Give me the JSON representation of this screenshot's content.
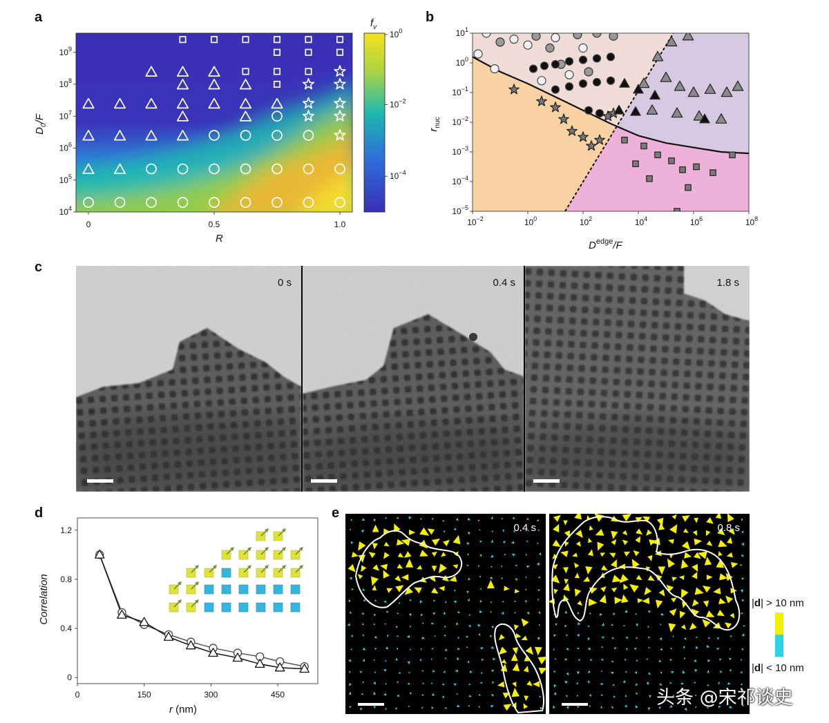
{
  "panels": {
    "a": "a",
    "b": "b",
    "c": "c",
    "d": "d",
    "e": "e"
  },
  "panel_a": {
    "xlabel": "R",
    "ylabel_main": "D",
    "ylabel_sub": "0",
    "ylabel_tail": "/F",
    "colorbar_label_main": "f",
    "colorbar_label_sub": "v",
    "x_ticks": [
      "0",
      "0.5",
      "1.0"
    ],
    "y_ticks": [
      {
        "base": "10",
        "exp": "4"
      },
      {
        "base": "10",
        "exp": "5"
      },
      {
        "base": "10",
        "exp": "6"
      },
      {
        "base": "10",
        "exp": "7"
      },
      {
        "base": "10",
        "exp": "8"
      },
      {
        "base": "10",
        "exp": "9"
      }
    ],
    "cbar_ticks": [
      {
        "base": "10",
        "exp": "0"
      },
      {
        "base": "10",
        "exp": "−2"
      },
      {
        "base": "10",
        "exp": "−4"
      }
    ],
    "colors": {
      "low": "#3a2fb5",
      "mid": "#1fb8b0",
      "high": "#f7e11c"
    }
  },
  "panel_b": {
    "xlabel_main": "D",
    "xlabel_sup": "edge",
    "xlabel_tail": "/F",
    "ylabel_main": "r",
    "ylabel_sub": "nuc",
    "x_ticks": [
      {
        "base": "10",
        "exp": "−2"
      },
      {
        "base": "10",
        "exp": "0"
      },
      {
        "base": "10",
        "exp": "2"
      },
      {
        "base": "10",
        "exp": "4"
      },
      {
        "base": "10",
        "exp": "6"
      },
      {
        "base": "10",
        "exp": "8"
      }
    ],
    "y_ticks": [
      {
        "base": "10",
        "exp": "1"
      },
      {
        "base": "10",
        "exp": "0"
      },
      {
        "base": "10",
        "exp": "−1"
      },
      {
        "base": "10",
        "exp": "−2"
      },
      {
        "base": "10",
        "exp": "−3"
      },
      {
        "base": "10",
        "exp": "−4"
      },
      {
        "base": "10",
        "exp": "−5"
      }
    ],
    "colors": {
      "orange": "#f8d2a2",
      "beige": "#efdcd6",
      "lavender": "#d7c9e1",
      "pink": "#eeb1da"
    }
  },
  "panel_c": {
    "times": [
      "0 s",
      "0.4 s",
      "1.8 s"
    ]
  },
  "panel_d": {
    "xlabel_main": "r",
    "xlabel_tail": " (nm)",
    "ylabel": "Correlation"
  },
  "panel_e": {
    "times": [
      "0.4 s",
      "0.8 s"
    ],
    "legend_high": "> 10 nm",
    "legend_low": "< 10 nm",
    "legend_sym": "d",
    "colors": {
      "yellow": "#f5f000",
      "cyan": "#2ad4e6"
    }
  },
  "watermark": "头条 @宋祁谈史",
  "chart_data": [
    {
      "type": "heatmap",
      "id": "a",
      "xlabel": "R",
      "ylabel": "D0/F",
      "xlim": [
        0,
        1
      ],
      "ylim_log10": [
        4,
        9.6
      ],
      "colorbar": "fv",
      "colorbar_range_log10": [
        -5,
        0
      ],
      "markers": [
        {
          "R": 0,
          "logD": 4.3,
          "shape": "circle"
        },
        {
          "R": 0.125,
          "logD": 4.3,
          "shape": "circle"
        },
        {
          "R": 0.25,
          "logD": 4.3,
          "shape": "circle"
        },
        {
          "R": 0.375,
          "logD": 4.3,
          "shape": "circle"
        },
        {
          "R": 0.5,
          "logD": 4.3,
          "shape": "circle"
        },
        {
          "R": 0.625,
          "logD": 4.3,
          "shape": "circle"
        },
        {
          "R": 0.75,
          "logD": 4.3,
          "shape": "circle"
        },
        {
          "R": 0.875,
          "logD": 4.3,
          "shape": "circle"
        },
        {
          "R": 1.0,
          "logD": 4.3,
          "shape": "circle"
        },
        {
          "R": 0,
          "logD": 5.35,
          "shape": "triangle"
        },
        {
          "R": 0.125,
          "logD": 5.35,
          "shape": "triangle"
        },
        {
          "R": 0.25,
          "logD": 5.35,
          "shape": "circle"
        },
        {
          "R": 0.375,
          "logD": 5.35,
          "shape": "circle"
        },
        {
          "R": 0.5,
          "logD": 5.35,
          "shape": "circle"
        },
        {
          "R": 0.625,
          "logD": 5.35,
          "shape": "circle"
        },
        {
          "R": 0.75,
          "logD": 5.35,
          "shape": "circle"
        },
        {
          "R": 0.875,
          "logD": 5.35,
          "shape": "circle"
        },
        {
          "R": 1.0,
          "logD": 5.35,
          "shape": "circle"
        },
        {
          "R": 0,
          "logD": 6.4,
          "shape": "triangle"
        },
        {
          "R": 0.125,
          "logD": 6.4,
          "shape": "triangle"
        },
        {
          "R": 0.25,
          "logD": 6.4,
          "shape": "triangle"
        },
        {
          "R": 0.375,
          "logD": 6.4,
          "shape": "triangle"
        },
        {
          "R": 0.5,
          "logD": 6.4,
          "shape": "circle"
        },
        {
          "R": 0.625,
          "logD": 6.4,
          "shape": "circle"
        },
        {
          "R": 0.75,
          "logD": 6.4,
          "shape": "circle"
        },
        {
          "R": 0.875,
          "logD": 6.4,
          "shape": "circle"
        },
        {
          "R": 1.0,
          "logD": 6.4,
          "shape": "star"
        },
        {
          "R": 0.375,
          "logD": 7.0,
          "shape": "triangle"
        },
        {
          "R": 0.625,
          "logD": 7.0,
          "shape": "triangle"
        },
        {
          "R": 0.75,
          "logD": 7.0,
          "shape": "circle"
        },
        {
          "R": 0.875,
          "logD": 7.0,
          "shape": "star"
        },
        {
          "R": 1.0,
          "logD": 7.0,
          "shape": "star"
        },
        {
          "R": 0,
          "logD": 7.4,
          "shape": "triangle"
        },
        {
          "R": 0.125,
          "logD": 7.4,
          "shape": "triangle"
        },
        {
          "R": 0.25,
          "logD": 7.4,
          "shape": "triangle"
        },
        {
          "R": 0.375,
          "logD": 7.4,
          "shape": "triangle"
        },
        {
          "R": 0.5,
          "logD": 7.4,
          "shape": "triangle"
        },
        {
          "R": 0.625,
          "logD": 7.4,
          "shape": "triangle"
        },
        {
          "R": 0.75,
          "logD": 7.4,
          "shape": "triangle"
        },
        {
          "R": 0.875,
          "logD": 7.4,
          "shape": "star"
        },
        {
          "R": 1.0,
          "logD": 7.4,
          "shape": "star"
        },
        {
          "R": 0.375,
          "logD": 8.0,
          "shape": "triangle"
        },
        {
          "R": 0.5,
          "logD": 8.0,
          "shape": "triangle"
        },
        {
          "R": 0.625,
          "logD": 8.0,
          "shape": "triangle"
        },
        {
          "R": 0.75,
          "logD": 8.0,
          "shape": "square"
        },
        {
          "R": 0.875,
          "logD": 8.0,
          "shape": "star"
        },
        {
          "R": 1.0,
          "logD": 8.0,
          "shape": "star"
        },
        {
          "R": 0.25,
          "logD": 8.4,
          "shape": "triangle"
        },
        {
          "R": 0.375,
          "logD": 8.4,
          "shape": "triangle"
        },
        {
          "R": 0.5,
          "logD": 8.4,
          "shape": "triangle"
        },
        {
          "R": 0.625,
          "logD": 8.4,
          "shape": "square"
        },
        {
          "R": 0.75,
          "logD": 8.4,
          "shape": "square"
        },
        {
          "R": 0.875,
          "logD": 8.4,
          "shape": "square"
        },
        {
          "R": 1.0,
          "logD": 8.4,
          "shape": "star"
        },
        {
          "R": 0.75,
          "logD": 9.0,
          "shape": "square"
        },
        {
          "R": 0.875,
          "logD": 9.0,
          "shape": "square"
        },
        {
          "R": 1.0,
          "logD": 9.0,
          "shape": "square"
        },
        {
          "R": 0.375,
          "logD": 9.4,
          "shape": "square"
        },
        {
          "R": 0.5,
          "logD": 9.4,
          "shape": "square"
        },
        {
          "R": 0.625,
          "logD": 9.4,
          "shape": "square"
        },
        {
          "R": 0.75,
          "logD": 9.4,
          "shape": "square"
        },
        {
          "R": 0.875,
          "logD": 9.4,
          "shape": "square"
        },
        {
          "R": 1.0,
          "logD": 9.4,
          "shape": "square"
        }
      ]
    },
    {
      "type": "scatter",
      "id": "b",
      "xlabel": "Dedge/F",
      "ylabel": "rnuc",
      "xlim_log10": [
        -2,
        8
      ],
      "ylim_log10": [
        -5,
        1
      ],
      "boundary_curve": [
        [
          -2,
          0.2
        ],
        [
          -1,
          -0.3
        ],
        [
          0,
          -0.7
        ],
        [
          1,
          -1.15
        ],
        [
          2,
          -1.6
        ],
        [
          3,
          -2.05
        ],
        [
          4,
          -2.45
        ],
        [
          5,
          -2.7
        ],
        [
          6,
          -2.85
        ],
        [
          7,
          -3.0
        ],
        [
          8,
          -3.05
        ]
      ],
      "series": [
        {
          "name": "open circles",
          "points": [
            [
              -1.5,
              1.0
            ],
            [
              -0.5,
              0.8
            ],
            [
              0,
              0.6
            ],
            [
              1,
              0.85
            ],
            [
              -1.8,
              0.3
            ],
            [
              -1.2,
              -0.2
            ],
            [
              0.5,
              -0.6
            ],
            [
              1.5,
              -0.4
            ],
            [
              2,
              0.5
            ]
          ]
        },
        {
          "name": "grey circles",
          "points": [
            [
              -1,
              0.7
            ],
            [
              0.3,
              0.9
            ],
            [
              0.8,
              0.5
            ],
            [
              1.8,
              0.95
            ],
            [
              2.5,
              1.0
            ],
            [
              3.1,
              0.9
            ],
            [
              2.2,
              -0.3
            ],
            [
              1.2,
              -0.05
            ]
          ]
        },
        {
          "name": "black circles",
          "points": [
            [
              0.2,
              -0.2
            ],
            [
              0.6,
              -0.1
            ],
            [
              1.0,
              -0.05
            ],
            [
              1.5,
              0.05
            ],
            [
              2.0,
              0.1
            ],
            [
              2.5,
              0.15
            ],
            [
              3.0,
              0.2
            ],
            [
              1.0,
              -0.9
            ],
            [
              1.5,
              -0.8
            ],
            [
              2.0,
              -0.7
            ],
            [
              2.5,
              -0.65
            ],
            [
              3.0,
              -0.6
            ],
            [
              2.2,
              -1.6
            ],
            [
              2.6,
              -1.7
            ]
          ]
        },
        {
          "name": "stars",
          "points": [
            [
              -0.5,
              -0.9
            ],
            [
              0.5,
              -1.3
            ],
            [
              1,
              -1.5
            ],
            [
              1.3,
              -1.9
            ],
            [
              1.6,
              -2.3
            ],
            [
              2,
              -2.5
            ],
            [
              2.3,
              -2.8
            ],
            [
              2.6,
              -2.6
            ],
            [
              2.9,
              -1.8
            ],
            [
              3.1,
              -1.7
            ]
          ]
        },
        {
          "name": "triangles",
          "points": [
            [
              4.7,
              0.2
            ],
            [
              5.2,
              0.7
            ],
            [
              5.8,
              0.9
            ],
            [
              6.3,
              1.3
            ],
            [
              4.2,
              -0.7
            ],
            [
              5.0,
              -0.5
            ],
            [
              5.5,
              -0.8
            ],
            [
              6.0,
              -1.0
            ],
            [
              6.6,
              -0.9
            ],
            [
              7.2,
              -1.0
            ],
            [
              7.6,
              -0.8
            ],
            [
              4.5,
              -1.6
            ],
            [
              5.4,
              -1.7
            ],
            [
              6.2,
              -1.8
            ],
            [
              7.0,
              -1.9
            ]
          ]
        },
        {
          "name": "black triangles",
          "points": [
            [
              3.5,
              -0.7
            ],
            [
              4.0,
              -0.9
            ],
            [
              4.6,
              -1.1
            ],
            [
              3.3,
              -1.6
            ],
            [
              3.9,
              -1.65
            ],
            [
              6.4,
              -1.9
            ]
          ]
        },
        {
          "name": "squares",
          "points": [
            [
              3.5,
              -2.6
            ],
            [
              4.2,
              -2.8
            ],
            [
              4.7,
              -3.1
            ],
            [
              5.2,
              -3.3
            ],
            [
              5.6,
              -3.6
            ],
            [
              6.1,
              -3.5
            ],
            [
              6.7,
              -3.7
            ],
            [
              7.4,
              -3.1
            ],
            [
              4.4,
              -3.9
            ],
            [
              5.8,
              -4.2
            ],
            [
              5.4,
              -5.0
            ],
            [
              3.9,
              -3.4
            ]
          ]
        }
      ]
    },
    {
      "type": "line",
      "id": "d",
      "xlabel": "r (nm)",
      "ylabel": "Correlation",
      "xlim": [
        0,
        540
      ],
      "ylim": [
        -0.05,
        1.3
      ],
      "x_ticks": [
        0,
        150,
        300,
        450
      ],
      "y_ticks": [
        0,
        0.4,
        0.8,
        1.2
      ],
      "series": [
        {
          "name": "circles",
          "x": [
            50,
            100,
            150,
            205,
            255,
            305,
            360,
            410,
            455,
            510
          ],
          "values": [
            1.0,
            0.53,
            0.43,
            0.35,
            0.29,
            0.24,
            0.2,
            0.17,
            0.13,
            0.09
          ]
        },
        {
          "name": "triangles",
          "x": [
            50,
            100,
            150,
            205,
            255,
            305,
            360,
            410,
            455,
            510
          ],
          "values": [
            1.0,
            0.51,
            0.45,
            0.33,
            0.26,
            0.2,
            0.16,
            0.11,
            0.08,
            0.07
          ]
        }
      ]
    }
  ]
}
